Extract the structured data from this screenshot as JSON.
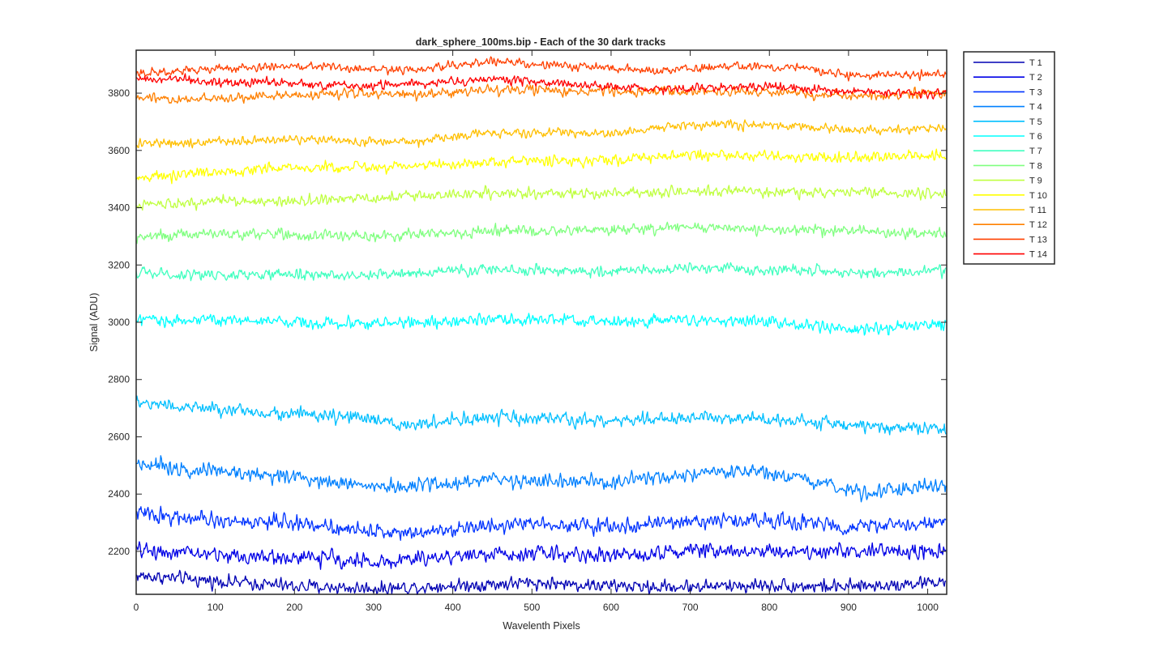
{
  "chart_data": {
    "type": "line",
    "title": "dark_sphere_100ms.bip - Each of the 30 dark tracks",
    "xlabel": "Wavelenth Pixels",
    "ylabel": "Signal (ADU)",
    "xlim": [
      0,
      1024
    ],
    "ylim": [
      2050,
      3950
    ],
    "xticks": [
      0,
      100,
      200,
      300,
      400,
      500,
      600,
      700,
      800,
      900,
      1000
    ],
    "yticks": [
      2200,
      2400,
      2600,
      2800,
      3000,
      3200,
      3400,
      3600,
      3800
    ],
    "legend_position": "outside-right",
    "x_points": 1024,
    "series": [
      {
        "name": "T 1",
        "color": "#0000b3",
        "base": 2090,
        "noise": 22,
        "wave": [
          [
            2115,
            0
          ],
          [
            2078,
            200
          ],
          [
            2070,
            300
          ],
          [
            2080,
            400
          ],
          [
            2090,
            500
          ],
          [
            2075,
            650
          ],
          [
            2082,
            800
          ],
          [
            2075,
            900
          ],
          [
            2095,
            1024
          ]
        ]
      },
      {
        "name": "T 2",
        "color": "#0000e6",
        "base": 2200,
        "noise": 25,
        "wave": [
          [
            2205,
            0
          ],
          [
            2180,
            150
          ],
          [
            2175,
            250
          ],
          [
            2160,
            300
          ],
          [
            2185,
            400
          ],
          [
            2195,
            500
          ],
          [
            2185,
            600
          ],
          [
            2205,
            700
          ],
          [
            2200,
            850
          ],
          [
            2200,
            1024
          ]
        ]
      },
      {
        "name": "T 3",
        "color": "#0033ff",
        "base": 2300,
        "noise": 25,
        "wave": [
          [
            2335,
            0
          ],
          [
            2305,
            100
          ],
          [
            2300,
            200
          ],
          [
            2265,
            320
          ],
          [
            2280,
            400
          ],
          [
            2300,
            500
          ],
          [
            2285,
            600
          ],
          [
            2305,
            700
          ],
          [
            2310,
            800
          ],
          [
            2285,
            900
          ],
          [
            2300,
            1024
          ]
        ]
      },
      {
        "name": "T 4",
        "color": "#0080ff",
        "base": 2450,
        "noise": 25,
        "wave": [
          [
            2510,
            0
          ],
          [
            2480,
            100
          ],
          [
            2460,
            200
          ],
          [
            2430,
            300
          ],
          [
            2420,
            320
          ],
          [
            2450,
            450
          ],
          [
            2440,
            600
          ],
          [
            2465,
            700
          ],
          [
            2480,
            780
          ],
          [
            2440,
            850
          ],
          [
            2410,
            920
          ],
          [
            2430,
            1024
          ]
        ]
      },
      {
        "name": "T 5",
        "color": "#00bfff",
        "base": 2660,
        "noise": 22,
        "wave": [
          [
            2720,
            0
          ],
          [
            2695,
            100
          ],
          [
            2680,
            200
          ],
          [
            2660,
            300
          ],
          [
            2640,
            330
          ],
          [
            2665,
            450
          ],
          [
            2655,
            600
          ],
          [
            2665,
            700
          ],
          [
            2670,
            780
          ],
          [
            2640,
            900
          ],
          [
            2625,
            1024
          ]
        ]
      },
      {
        "name": "T 6",
        "color": "#00ffff",
        "base": 3000,
        "noise": 20,
        "wave": [
          [
            3005,
            0
          ],
          [
            3010,
            100
          ],
          [
            3000,
            200
          ],
          [
            2995,
            300
          ],
          [
            3010,
            500
          ],
          [
            3000,
            600
          ],
          [
            3010,
            700
          ],
          [
            3005,
            800
          ],
          [
            2975,
            900
          ],
          [
            2990,
            1024
          ]
        ]
      },
      {
        "name": "T 7",
        "color": "#40ffbf",
        "base": 3170,
        "noise": 18,
        "wave": [
          [
            3170,
            0
          ],
          [
            3165,
            100
          ],
          [
            3165,
            300
          ],
          [
            3185,
            450
          ],
          [
            3175,
            600
          ],
          [
            3190,
            700
          ],
          [
            3180,
            850
          ],
          [
            3170,
            900
          ],
          [
            3180,
            1024
          ]
        ]
      },
      {
        "name": "T 8",
        "color": "#80ff80",
        "base": 3310,
        "noise": 18,
        "wave": [
          [
            3300,
            0
          ],
          [
            3310,
            100
          ],
          [
            3300,
            300
          ],
          [
            3320,
            450
          ],
          [
            3320,
            600
          ],
          [
            3330,
            700
          ],
          [
            3320,
            850
          ],
          [
            3310,
            1024
          ]
        ]
      },
      {
        "name": "T 9",
        "color": "#bfff40",
        "base": 3440,
        "noise": 18,
        "wave": [
          [
            3410,
            0
          ],
          [
            3425,
            100
          ],
          [
            3420,
            200
          ],
          [
            3435,
            300
          ],
          [
            3450,
            450
          ],
          [
            3450,
            600
          ],
          [
            3460,
            700
          ],
          [
            3455,
            850
          ],
          [
            3450,
            1024
          ]
        ]
      },
      {
        "name": "T 10",
        "color": "#ffff00",
        "base": 3550,
        "noise": 18,
        "wave": [
          [
            3500,
            0
          ],
          [
            3525,
            100
          ],
          [
            3540,
            200
          ],
          [
            3545,
            350
          ],
          [
            3560,
            450
          ],
          [
            3565,
            600
          ],
          [
            3585,
            700
          ],
          [
            3575,
            850
          ],
          [
            3580,
            1024
          ]
        ]
      },
      {
        "name": "T 11",
        "color": "#ffbf00",
        "base": 3650,
        "noise": 15,
        "wave": [
          [
            3620,
            0
          ],
          [
            3630,
            100
          ],
          [
            3640,
            200
          ],
          [
            3630,
            350
          ],
          [
            3665,
            450
          ],
          [
            3660,
            600
          ],
          [
            3690,
            700
          ],
          [
            3690,
            800
          ],
          [
            3670,
            900
          ],
          [
            3680,
            1024
          ]
        ]
      },
      {
        "name": "T 12",
        "color": "#ff8000",
        "base": 3800,
        "noise": 15,
        "wave": [
          [
            3790,
            0
          ],
          [
            3775,
            50
          ],
          [
            3790,
            150
          ],
          [
            3800,
            250
          ],
          [
            3795,
            350
          ],
          [
            3810,
            450
          ],
          [
            3805,
            600
          ],
          [
            3805,
            800
          ],
          [
            3790,
            900
          ],
          [
            3800,
            1024
          ]
        ]
      },
      {
        "name": "T 13",
        "color": "#ff4000",
        "base": 3880,
        "noise": 14,
        "wave": [
          [
            3865,
            0
          ],
          [
            3885,
            100
          ],
          [
            3895,
            200
          ],
          [
            3880,
            350
          ],
          [
            3910,
            450
          ],
          [
            3895,
            550
          ],
          [
            3880,
            650
          ],
          [
            3895,
            750
          ],
          [
            3885,
            850
          ],
          [
            3860,
            900
          ],
          [
            3870,
            1024
          ]
        ]
      },
      {
        "name": "T 14",
        "color": "#ff0000",
        "base": 3830,
        "noise": 15,
        "wave": [
          [
            3850,
            0
          ],
          [
            3840,
            100
          ],
          [
            3835,
            200
          ],
          [
            3825,
            300
          ],
          [
            3850,
            450
          ],
          [
            3830,
            550
          ],
          [
            3815,
            650
          ],
          [
            3825,
            800
          ],
          [
            3805,
            900
          ],
          [
            3800,
            1024
          ]
        ]
      }
    ]
  }
}
